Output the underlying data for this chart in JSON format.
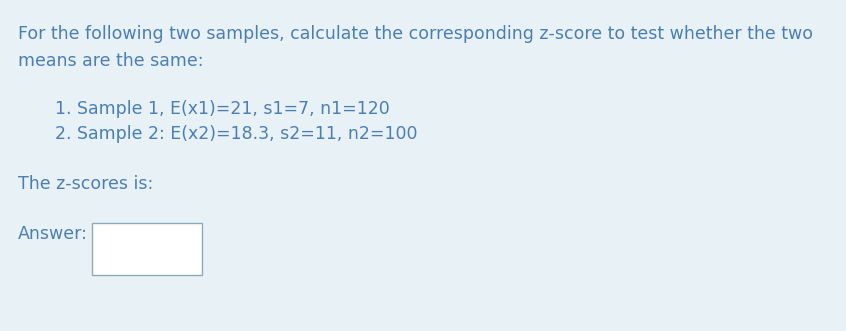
{
  "bg_color": "#e8f1f5",
  "text_color": "#4a7fb5",
  "title_line1": "For the following two samples, calculate the corresponding z-score to test whether the two",
  "title_line2": "means are the same:",
  "item1": "1. Sample 1, E(x1)=21, s1=7, n1=120",
  "item2": "2. Sample 2: E(x2)=18.3, s2=11, n2=100",
  "zscore_label": "The z-scores is:",
  "answer_label": "Answer:",
  "font_size": 12.5
}
